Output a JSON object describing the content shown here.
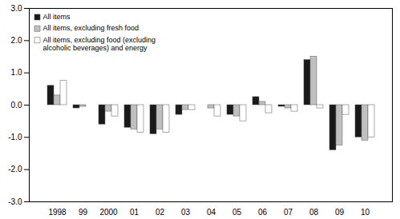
{
  "chart_data": {
    "type": "bar",
    "categories": [
      "1998",
      "99",
      "2000",
      "01",
      "02",
      "03",
      "04",
      "05",
      "06",
      "07",
      "08",
      "09",
      "10"
    ],
    "series": [
      {
        "name": "All items",
        "color": "#1a1a1a",
        "values": [
          0.6,
          -0.1,
          -0.6,
          -0.7,
          -0.9,
          -0.3,
          0.0,
          -0.3,
          0.25,
          -0.05,
          1.4,
          -1.4,
          -1.0
        ]
      },
      {
        "name": "All items, excluding fresh food",
        "color": "#c0c0c0",
        "values": [
          0.3,
          -0.05,
          -0.2,
          -0.75,
          -0.75,
          -0.15,
          -0.1,
          -0.35,
          0.1,
          -0.1,
          1.5,
          -1.25,
          -1.1
        ]
      },
      {
        "name": "All items, excluding food (excluding\nalcoholic beverages) and energy",
        "color": "#ffffff",
        "values": [
          0.75,
          0.0,
          -0.35,
          -0.85,
          -0.85,
          -0.15,
          -0.35,
          -0.5,
          -0.25,
          -0.2,
          -0.1,
          -0.3,
          -1.0
        ]
      }
    ],
    "ylim": [
      -3.0,
      3.0
    ],
    "yticks": [
      {
        "value": -3.0,
        "label": "-3.0"
      },
      {
        "value": -2.0,
        "label": "-2.0"
      },
      {
        "value": -1.0,
        "label": "-1.0"
      },
      {
        "value": 0.0,
        "label": "0.0"
      },
      {
        "value": 1.0,
        "label": "1.0"
      },
      {
        "value": 2.0,
        "label": "2.0"
      },
      {
        "value": 3.0,
        "label": "3.0"
      }
    ],
    "grid": false,
    "legend": "upper left"
  }
}
